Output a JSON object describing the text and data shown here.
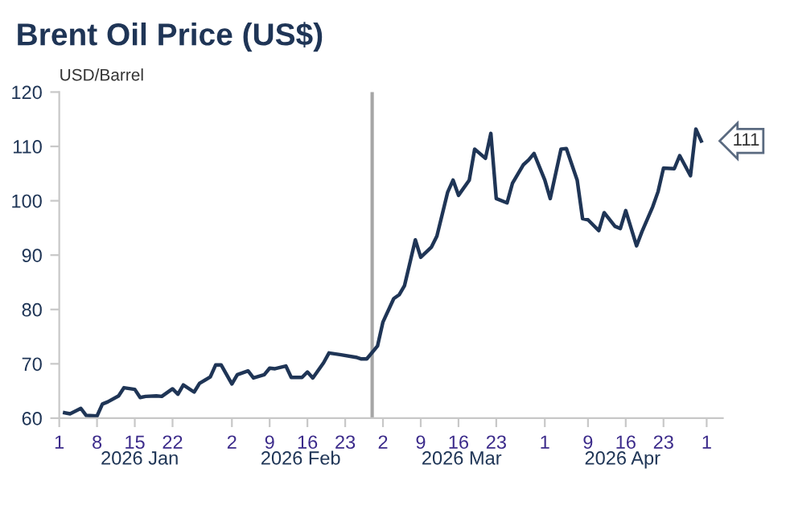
{
  "chart_data": {
    "type": "line",
    "title": "Brent Oil Price (US$)",
    "ylabel": "USD/Barrel",
    "x": [
      "2026-01-02",
      "2026-01-03",
      "2026-01-05",
      "2026-01-06",
      "2026-01-08",
      "2026-01-09",
      "2026-01-10",
      "2026-01-12",
      "2026-01-13",
      "2026-01-15",
      "2026-01-16",
      "2026-01-17",
      "2026-01-19",
      "2026-01-20",
      "2026-01-22",
      "2026-01-23",
      "2026-01-24",
      "2026-01-26",
      "2026-01-27",
      "2026-01-29",
      "2026-01-30",
      "2026-01-31",
      "2026-02-02",
      "2026-02-03",
      "2026-02-05",
      "2026-02-06",
      "2026-02-08",
      "2026-02-09",
      "2026-02-10",
      "2026-02-12",
      "2026-02-13",
      "2026-02-15",
      "2026-02-16",
      "2026-02-17",
      "2026-02-19",
      "2026-02-20",
      "2026-02-22",
      "2026-02-25",
      "2026-02-26",
      "2026-02-27",
      "2026-03-01",
      "2026-03-02",
      "2026-03-04",
      "2026-03-05",
      "2026-03-06",
      "2026-03-08",
      "2026-03-09",
      "2026-03-11",
      "2026-03-12",
      "2026-03-14",
      "2026-03-15",
      "2026-03-16",
      "2026-03-18",
      "2026-03-19",
      "2026-03-21",
      "2026-03-22",
      "2026-03-23",
      "2026-03-25",
      "2026-03-26",
      "2026-03-28",
      "2026-03-29",
      "2026-03-30",
      "2026-04-01",
      "2026-04-02",
      "2026-04-04",
      "2026-04-05",
      "2026-04-07",
      "2026-04-08",
      "2026-04-09",
      "2026-04-11",
      "2026-04-12",
      "2026-04-14",
      "2026-04-15",
      "2026-04-16",
      "2026-04-18",
      "2026-04-19",
      "2026-04-21",
      "2026-04-22",
      "2026-04-23",
      "2026-04-25",
      "2026-04-26",
      "2026-04-28",
      "2026-04-29",
      "2026-04-30"
    ],
    "series": [
      {
        "color": "#1f3556",
        "values": [
          61.0,
          60.8,
          61.8,
          60.5,
          60.4,
          62.6,
          63.0,
          64.1,
          65.6,
          65.3,
          63.8,
          64.0,
          64.1,
          64.0,
          65.4,
          64.4,
          66.1,
          64.8,
          66.4,
          67.6,
          69.8,
          69.8,
          66.3,
          68.0,
          68.7,
          67.4,
          68.0,
          69.2,
          69.1,
          69.6,
          67.5,
          67.5,
          68.5,
          67.4,
          70.2,
          72.0,
          71.7,
          71.2,
          70.9,
          70.9,
          73.3,
          77.7,
          82.0,
          82.7,
          84.4,
          92.8,
          89.6,
          91.5,
          93.5,
          101.6,
          103.8,
          101.0,
          103.8,
          109.5,
          107.8,
          112.4,
          100.4,
          99.6,
          103.2,
          106.6,
          107.5,
          108.7,
          103.8,
          100.4,
          109.5,
          109.6,
          103.8,
          96.7,
          96.5,
          94.5,
          97.8,
          95.3,
          94.9,
          98.2,
          91.7,
          94.3,
          98.9,
          101.7,
          106.0,
          105.9,
          108.3,
          104.6,
          113.2,
          111
        ],
        "value_labels": [
          null,
          null,
          null,
          null,
          null,
          null,
          null,
          null,
          null,
          null,
          null,
          null,
          null,
          null,
          null,
          null,
          null,
          null,
          null,
          null,
          null,
          null,
          null,
          null,
          null,
          null,
          null,
          null,
          null,
          null,
          null,
          null,
          null,
          null,
          null,
          null,
          null,
          null,
          null,
          null,
          null,
          null,
          null,
          null,
          null,
          null,
          null,
          null,
          null,
          null,
          null,
          null,
          null,
          null,
          null,
          null,
          null,
          null,
          null,
          null,
          null,
          null,
          null,
          null,
          null,
          null,
          null,
          null,
          null,
          null,
          null,
          null,
          null,
          null,
          null,
          null,
          null,
          null,
          null,
          null,
          null,
          null,
          null,
          "111"
        ]
      }
    ],
    "xlim": [
      "2026-01-01",
      "2026-05-04"
    ],
    "xticks": [
      {
        "value": "2026-01-01",
        "label": "1"
      },
      {
        "value": "2026-01-08",
        "label": "8"
      },
      {
        "value": "2026-01-15",
        "label": "15"
      },
      {
        "value": "2026-01-22",
        "label": "22"
      },
      {
        "value": "2026-02-02",
        "label": "2"
      },
      {
        "value": "2026-02-09",
        "label": "9"
      },
      {
        "value": "2026-02-16",
        "label": "16"
      },
      {
        "value": "2026-02-23",
        "label": "23"
      },
      {
        "value": "2026-03-02",
        "label": "2"
      },
      {
        "value": "2026-03-09",
        "label": "9"
      },
      {
        "value": "2026-03-16",
        "label": "16"
      },
      {
        "value": "2026-03-23",
        "label": "23"
      },
      {
        "value": "2026-04-01",
        "label": "1"
      },
      {
        "value": "2026-04-09",
        "label": "9"
      },
      {
        "value": "2026-04-16",
        "label": "16"
      },
      {
        "value": "2026-04-23",
        "label": "23"
      },
      {
        "value": "2026-05-01",
        "label": "1"
      }
    ],
    "ylim": [
      60,
      120
    ],
    "yticks": [
      60,
      70,
      80,
      90,
      100,
      110,
      120
    ],
    "ref_lines": [
      {
        "axis": "x",
        "value": "2026-02-28",
        "color": "#a6a6a6"
      }
    ],
    "annotations": [
      "2026 Jan",
      "2026 Feb",
      "2026 Mar",
      "2026 Apr"
    ],
    "grid": false,
    "legend": false,
    "marker": "none",
    "line_style": "solid"
  }
}
